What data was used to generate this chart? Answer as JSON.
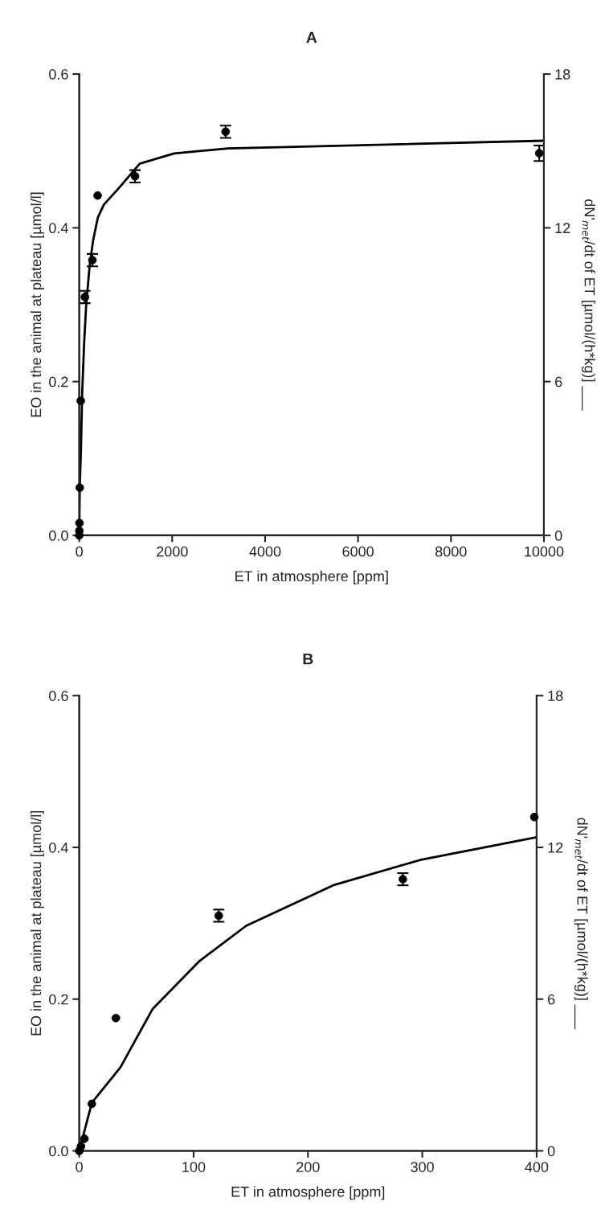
{
  "chart_data": [
    {
      "type": "scatter",
      "title": "A",
      "xlabel": "ET in atmosphere [ppm]",
      "ylabel": "EO in the animal at plateau [µmol/l]",
      "y2label": "dN'$_{met}$/dt of ET [µmol/(h*kg)] ___",
      "xlim": [
        0,
        10000
      ],
      "xticks": [
        0,
        2000,
        4000,
        6000,
        8000,
        10000
      ],
      "ylim": [
        0,
        0.6
      ],
      "yticks": [
        {
          "value": 0,
          "label": "0.0"
        },
        0.2,
        0.4,
        0.6
      ],
      "y2lim": [
        0,
        18
      ],
      "y2ticks": [
        0,
        6,
        12,
        18
      ],
      "grid": false,
      "marker": "circle",
      "series": [
        {
          "color": "#000000",
          "x": [
            0,
            1.5,
            4.5,
            11,
            32,
            122,
            283,
            395,
            1200,
            3150,
            9900
          ],
          "values": [
            0,
            0.006,
            0.016,
            0.062,
            0.175,
            0.31,
            0.358,
            0.442,
            0.467,
            0.525,
            0.497
          ],
          "errors": [
            null,
            null,
            null,
            null,
            null,
            0.008,
            0.008,
            null,
            0.008,
            0.008,
            0.01
          ]
        },
        {
          "type": "line",
          "axis": "y2",
          "color": "#000000",
          "marker": "none",
          "line_style": "solid",
          "x": [
            0,
            11,
            36,
            64,
            105,
            146,
            222,
            298,
            400,
            528,
            876,
            1300,
            2040,
            3200,
            5530,
            10000
          ],
          "values": [
            0,
            1.9,
            3.3,
            5.6,
            7.5,
            8.9,
            10.5,
            11.5,
            12.4,
            12.9,
            13.6,
            14.5,
            14.9,
            15.1,
            15.2,
            15.4
          ]
        }
      ]
    },
    {
      "type": "scatter",
      "title": "B",
      "xlabel": "ET in atmosphere [ppm]",
      "ylabel": "EO in the animal at plateau [µmol/l]",
      "y2label": "dN'$_{met}$/dt of ET [µmol/(h*kg)] ___",
      "xlim": [
        0,
        400
      ],
      "xticks": [
        0,
        100,
        200,
        300,
        400
      ],
      "ylim": [
        0,
        0.6
      ],
      "yticks": [
        {
          "value": 0,
          "label": "0.0"
        },
        0.2,
        0.4,
        0.6
      ],
      "y2lim": [
        0,
        18
      ],
      "y2ticks": [
        0,
        6,
        12,
        18
      ],
      "grid": false,
      "marker": "circle",
      "series": [
        {
          "color": "#000000",
          "x": [
            0,
            1.5,
            4.5,
            11,
            32,
            122,
            283,
            398
          ],
          "values": [
            0,
            0.006,
            0.016,
            0.062,
            0.175,
            0.31,
            0.358,
            0.44
          ],
          "errors": [
            null,
            null,
            null,
            null,
            null,
            0.008,
            0.008,
            null
          ]
        },
        {
          "type": "line",
          "axis": "y2",
          "color": "#000000",
          "marker": "none",
          "line_style": "solid",
          "x": [
            0,
            11,
            36,
            64,
            105,
            146,
            222,
            298,
            400
          ],
          "values": [
            0,
            1.9,
            3.3,
            5.6,
            7.5,
            8.9,
            10.5,
            11.5,
            12.4
          ]
        }
      ]
    }
  ]
}
